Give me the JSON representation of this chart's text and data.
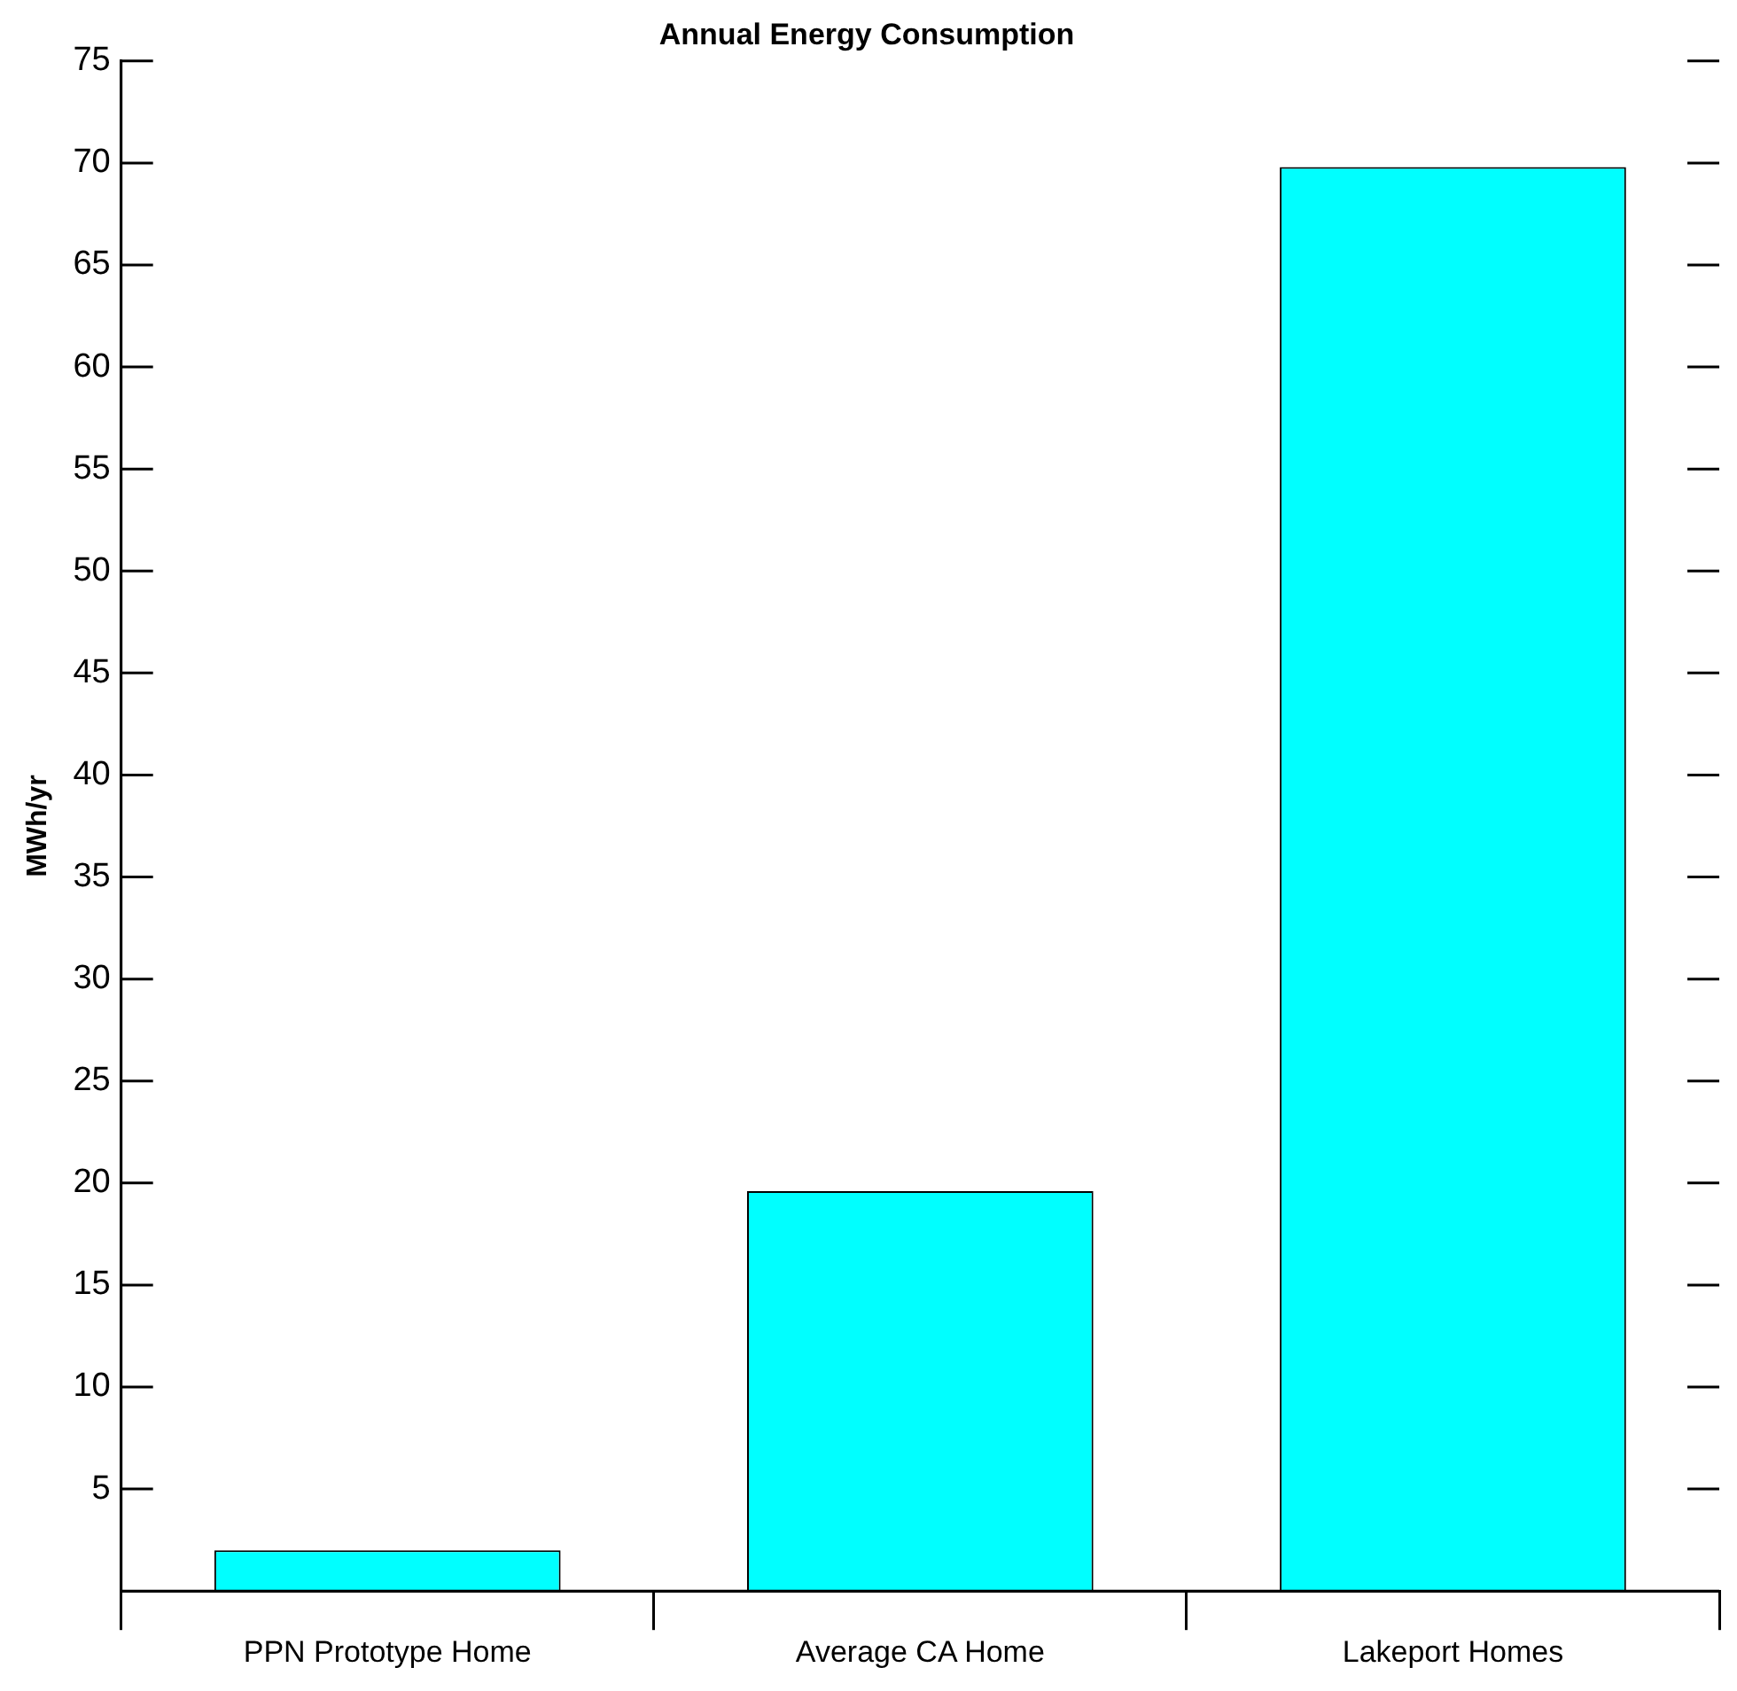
{
  "chart_data": {
    "type": "bar",
    "title": "Annual Energy Consumption",
    "ylabel": "MWh/yr",
    "categories": [
      "PPN Prototype Home",
      "Average CA Home",
      "Lakeport Homes"
    ],
    "values": [
      2.0,
      19.6,
      69.8
    ],
    "color": "#00ffff",
    "ylim": [
      0,
      75
    ],
    "yticks": [
      5,
      10,
      15,
      20,
      25,
      30,
      35,
      40,
      45,
      50,
      55,
      60,
      65,
      70,
      75
    ],
    "grid": false,
    "legend": false
  }
}
